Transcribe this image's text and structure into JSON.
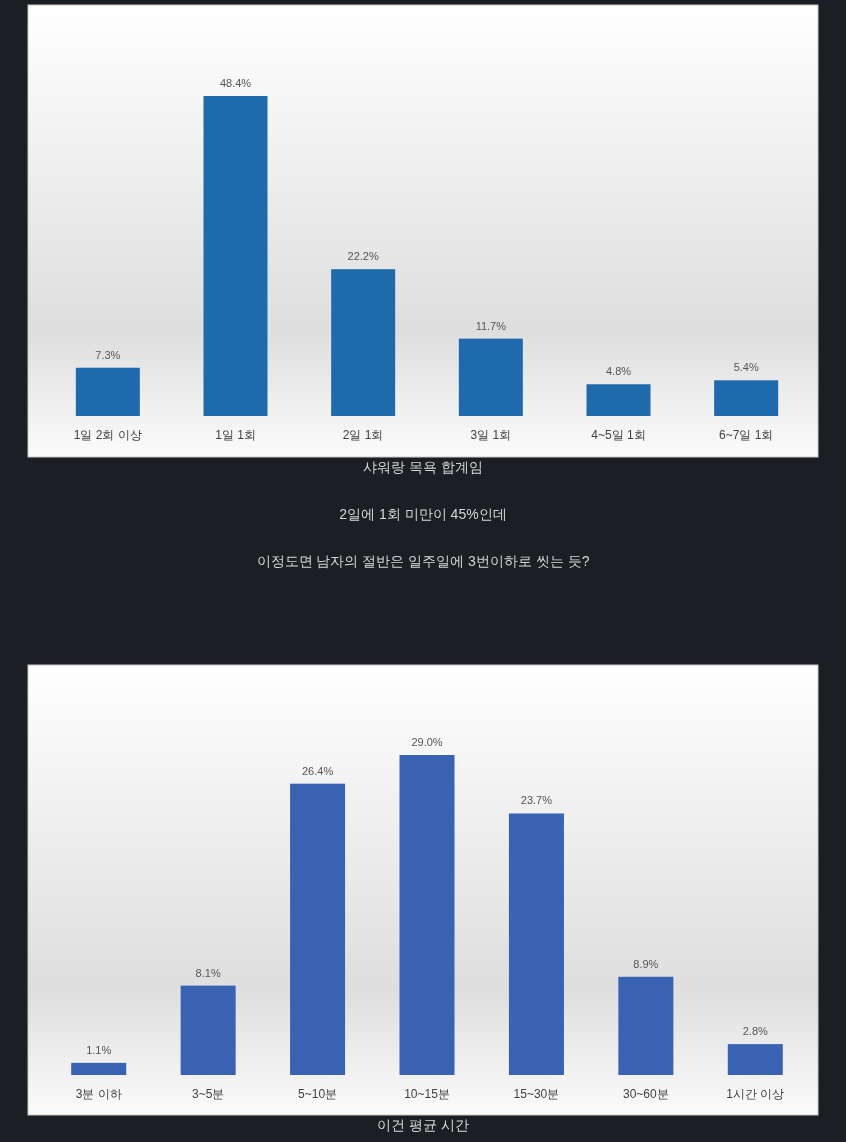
{
  "chart_data": [
    {
      "type": "bar",
      "categories": [
        "1일 2회 이상",
        "1일 1회",
        "2일 1회",
        "3일 1회",
        "4~5일 1회",
        "6~7일 1회"
      ],
      "values": [
        7.3,
        48.4,
        22.2,
        11.7,
        4.8,
        5.4
      ],
      "value_labels": [
        "7.3%",
        "48.4%",
        "22.2%",
        "11.7%",
        "4.8%",
        "5.4%"
      ],
      "color": "#1f69ad",
      "annotations": [
        "샤워랑 목욕 합계임",
        "2일에 1회 미만이 45%인데",
        "이정도면 남자의 절반은 일주일에 3번이하로 씻는 듯?"
      ]
    },
    {
      "type": "bar",
      "categories": [
        "3분 이하",
        "3~5분",
        "5~10분",
        "10~15분",
        "15~30분",
        "30~60분",
        "1시간 이상"
      ],
      "values": [
        1.1,
        8.1,
        26.4,
        29.0,
        23.7,
        8.9,
        2.8
      ],
      "value_labels": [
        "1.1%",
        "8.1%",
        "26.4%",
        "29.0%",
        "23.7%",
        "8.9%",
        "2.8%"
      ],
      "color": "#3a62b2",
      "annotations": [
        "이건 평균 시간"
      ]
    }
  ]
}
